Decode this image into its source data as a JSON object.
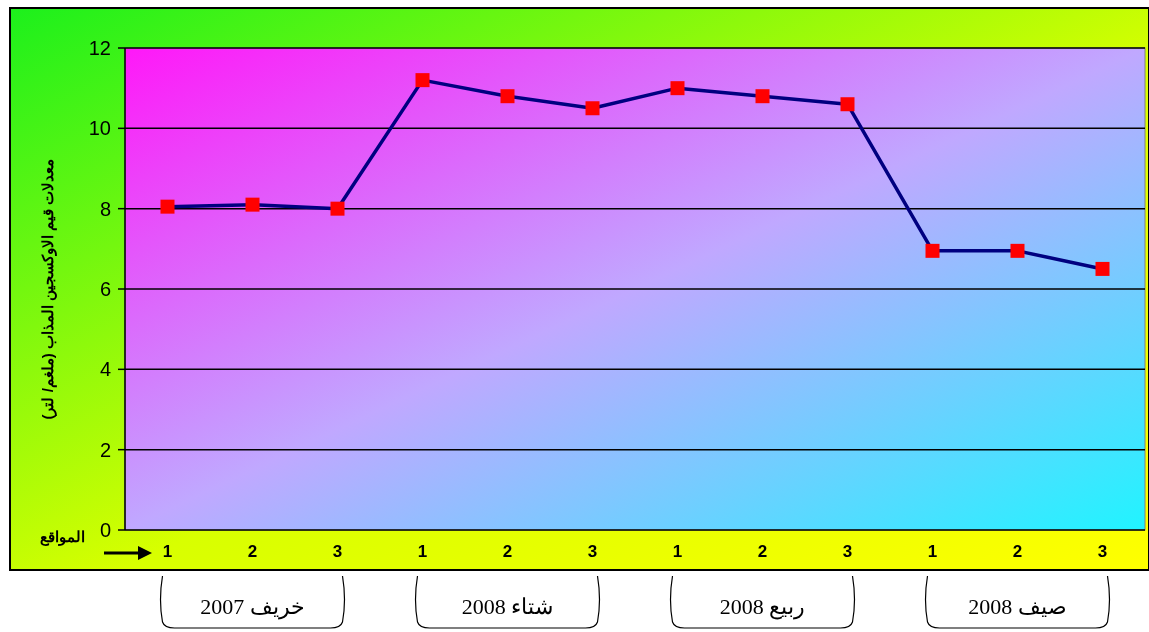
{
  "chart_data": {
    "type": "line",
    "ylabel": "معدلات قيم الاوكسجين المذاب  (ملغم/ لتر)",
    "xlabel": "المواقع",
    "categories": [
      "1",
      "2",
      "3",
      "1",
      "2",
      "3",
      "1",
      "2",
      "3",
      "1",
      "2",
      "3"
    ],
    "series": [
      {
        "color": "#000080",
        "values": [
          8.05,
          8.1,
          8.0,
          11.2,
          10.8,
          10.5,
          11.0,
          10.8,
          10.6,
          6.95,
          6.95,
          6.5
        ]
      }
    ],
    "ylim": [
      0,
      12
    ],
    "yticks": [
      0,
      2,
      4,
      6,
      8,
      10,
      12
    ],
    "grid": "y",
    "marker": "square",
    "annotations": [
      "خريف 2007",
      "شتاء 2008",
      "ربيع 2008",
      "صيف 2008"
    ]
  }
}
